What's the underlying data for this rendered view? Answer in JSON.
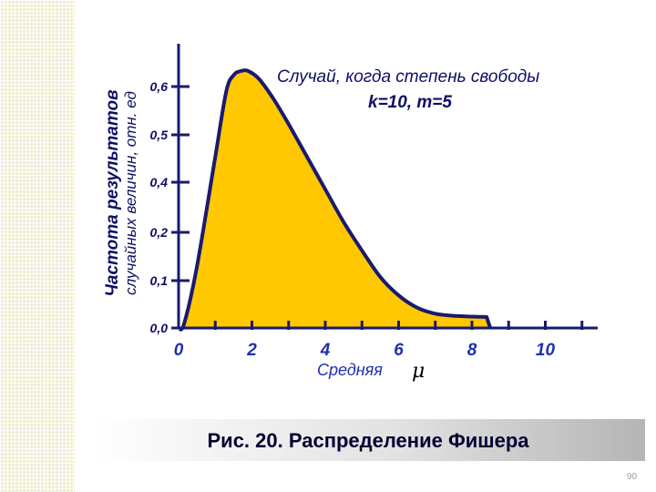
{
  "chart_data": {
    "type": "area",
    "title": "Случай, когда степень свободы",
    "subtitle": "k=10,  m=5",
    "xlabel": "Средняя",
    "xlabel_symbol": "μ",
    "ylabel_line1": "Частота результатов",
    "ylabel_line2": "случайных величин, отн. ед",
    "x_ticks": [
      "0",
      "2",
      "4",
      "6",
      "8",
      "10"
    ],
    "x_tick_values": [
      0,
      2,
      4,
      6,
      8,
      10
    ],
    "y_ticks": [
      "0,0",
      "0,1",
      "0,2",
      "0,4",
      "0,5",
      "0,6"
    ],
    "xlim": [
      0,
      11.5
    ],
    "grid": false,
    "fill_color": "#ffc800",
    "line_color": "#1a1a6e",
    "series": [
      {
        "x": [
          0.0,
          0.15,
          0.5,
          1.0,
          1.3,
          1.5,
          1.7,
          1.9,
          2.2,
          2.6,
          3.0,
          3.5,
          4.0,
          4.5,
          5.0,
          5.5,
          6.0,
          6.5,
          7.0,
          7.5,
          8.0,
          8.4,
          8.5
        ],
        "y": [
          0.0,
          0.01,
          0.15,
          0.42,
          0.58,
          0.62,
          0.63,
          0.63,
          0.61,
          0.56,
          0.5,
          0.42,
          0.34,
          0.26,
          0.19,
          0.125,
          0.08,
          0.05,
          0.035,
          0.03,
          0.028,
          0.027,
          0.0
        ]
      }
    ]
  },
  "caption": "Рис. 20. Распределение Фишера",
  "page_number": "90"
}
